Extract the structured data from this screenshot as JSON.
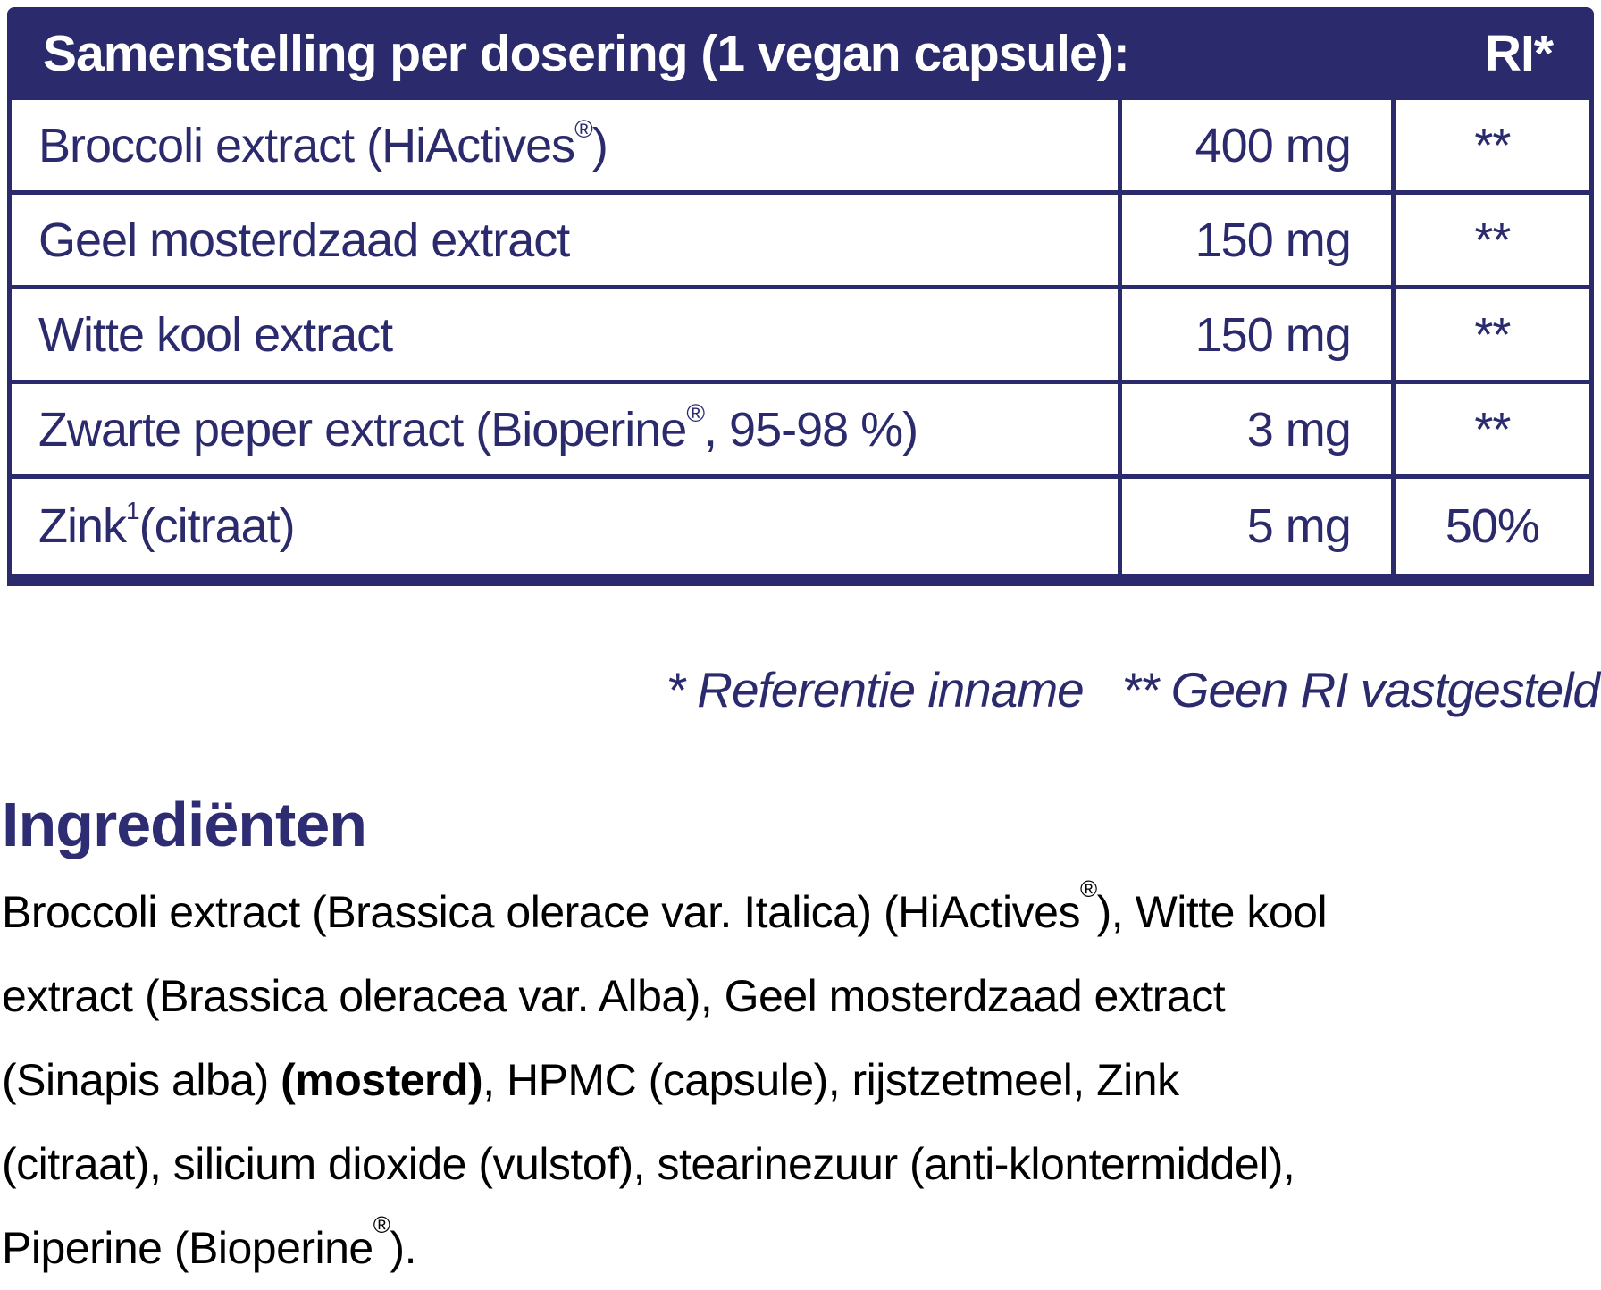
{
  "colors": {
    "navy": "#2b2a6c",
    "heading_navy": "#2e2d74",
    "body_text": "#000000",
    "header_text": "#ffffff"
  },
  "table": {
    "header": {
      "title": "Samenstelling per dosering (1 vegan capsule):",
      "ri_label": "RI*"
    },
    "rows": [
      {
        "name": "Broccoli extract (HiActives®)",
        "amount": "400 mg",
        "ri": "**"
      },
      {
        "name": "Geel mosterdzaad extract",
        "amount": "150 mg",
        "ri": "**"
      },
      {
        "name": "Witte kool extract",
        "amount": "150 mg",
        "ri": "**"
      },
      {
        "name": "Zwarte peper extract (Bioperine®, 95-98 %)",
        "amount": "3 mg",
        "ri": "**"
      },
      {
        "name": "Zink¹ (citraat)",
        "amount": "5 mg",
        "ri": "50%"
      }
    ]
  },
  "footnote": {
    "text": "* Referentie inname   ** Geen RI vastgesteld"
  },
  "ingredients": {
    "heading": "Ingrediënten",
    "text_before_bold": "Broccoli extract (Brassica olerace var. Italica) (HiActives®), Witte kool extract (Brassica oleracea var. Alba), Geel mosterdzaad extract (Sinapis alba) ",
    "bold": "(mosterd)",
    "text_after_bold": ", HPMC (capsule), rijstzetmeel, Zink (citraat), silicium dioxide (vulstof), stearinezuur (anti-klontermiddel), Piperine (Bioperine®)."
  }
}
